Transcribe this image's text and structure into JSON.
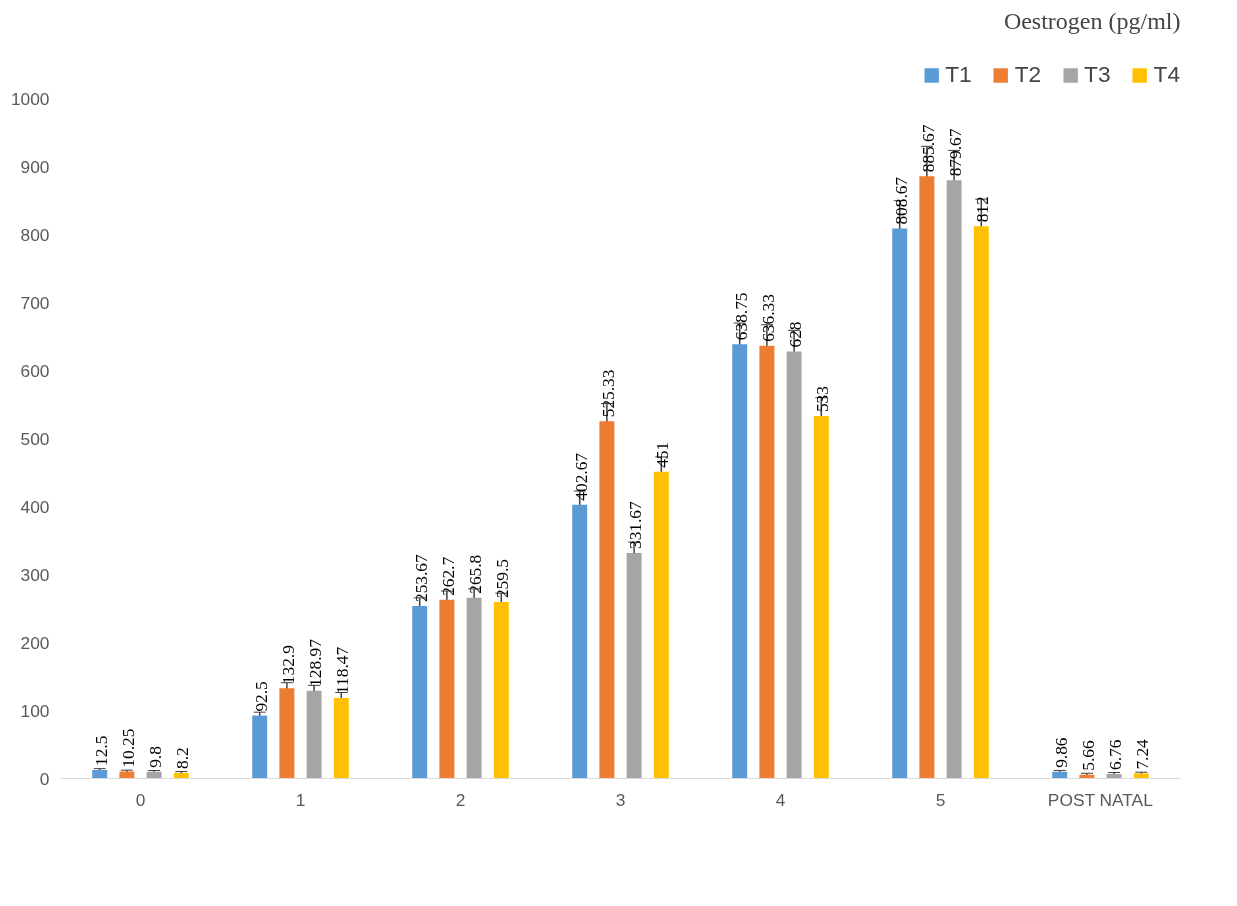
{
  "chart_data": {
    "type": "bar",
    "title": "Oestrogen (pg/ml)",
    "categories": [
      "0",
      "1",
      "2",
      "3",
      "4",
      "5",
      "POST NATAL"
    ],
    "series": [
      {
        "name": "T1",
        "color": "#5b9bd5",
        "values": [
          12.5,
          92.5,
          253.67,
          402.67,
          638.75,
          808.67,
          9.86
        ],
        "errors": [
          2,
          5,
          12,
          20,
          31,
          41,
          2
        ]
      },
      {
        "name": "T2",
        "color": "#ed7d31",
        "values": [
          10.25,
          132.9,
          262.7,
          525.33,
          636.33,
          885.67,
          5.66
        ],
        "errors": [
          2,
          8,
          13,
          26,
          31,
          44,
          2
        ]
      },
      {
        "name": "T3",
        "color": "#a5a5a5",
        "values": [
          9.8,
          128.97,
          265.8,
          331.67,
          628,
          879.67,
          6.76
        ],
        "errors": [
          2,
          8,
          13,
          16,
          31,
          44,
          2
        ]
      },
      {
        "name": "T4",
        "color": "#ffc000",
        "values": [
          8.2,
          118.47,
          259.5,
          451,
          533,
          812,
          7.24
        ],
        "errors": [
          2,
          8,
          13,
          22,
          27,
          40,
          2
        ]
      }
    ],
    "ylim": [
      0,
      1000
    ],
    "yticks": [
      0,
      100,
      200,
      300,
      400,
      500,
      600,
      700,
      800,
      900,
      1000
    ],
    "data_labels": true,
    "grid": false,
    "legend": "top right"
  }
}
